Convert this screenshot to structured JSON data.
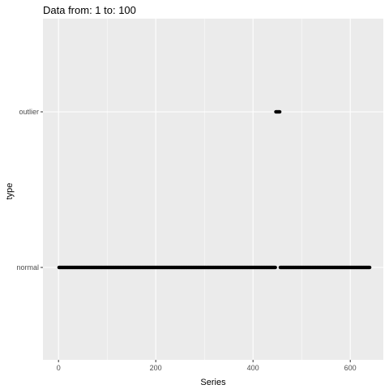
{
  "colors": {
    "panel_bg": "#ebebeb",
    "grid_major": "#ffffff",
    "point": "#000000",
    "tick": "#333333"
  },
  "chart_data": {
    "type": "scatter",
    "title": "Data from:  1  to:  100",
    "xlabel": "Series",
    "ylabel": "type",
    "xlim": [
      -32,
      668
    ],
    "x_ticks": [
      0,
      200,
      400,
      600
    ],
    "y_categories": [
      "normal",
      "outlier"
    ],
    "grid": true,
    "series": [
      {
        "category": "normal",
        "x_ranges": [
          [
            1,
            446
          ],
          [
            456,
            640
          ]
        ]
      },
      {
        "category": "outlier",
        "x_ranges": [
          [
            447,
            455
          ]
        ]
      }
    ]
  }
}
